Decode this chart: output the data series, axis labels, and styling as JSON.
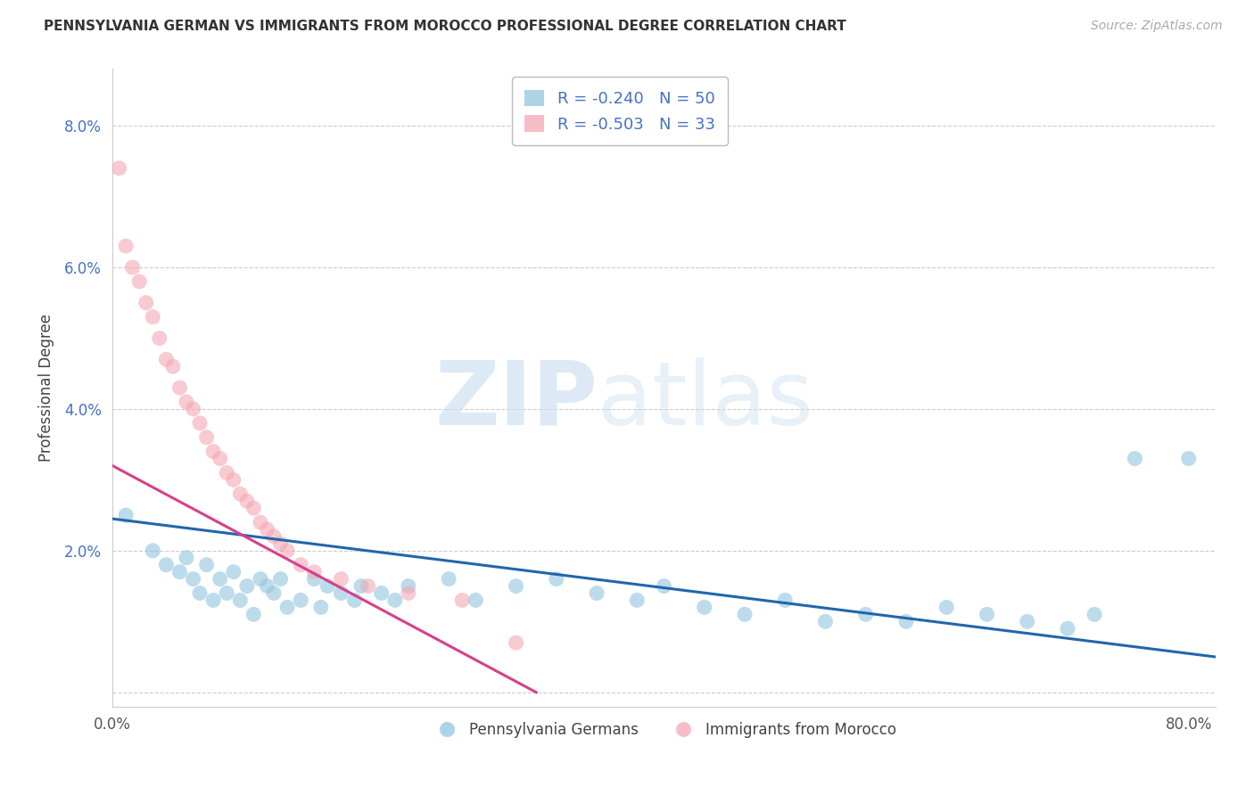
{
  "title": "PENNSYLVANIA GERMAN VS IMMIGRANTS FROM MOROCCO PROFESSIONAL DEGREE CORRELATION CHART",
  "source": "Source: ZipAtlas.com",
  "ylabel": "Professional Degree",
  "yticks": [
    0.0,
    0.02,
    0.04,
    0.06,
    0.08
  ],
  "ytick_labels": [
    "",
    "2.0%",
    "4.0%",
    "6.0%",
    "8.0%"
  ],
  "xlim": [
    0.0,
    0.82
  ],
  "ylim": [
    -0.002,
    0.088
  ],
  "bg_color": "#ffffff",
  "legend_r1": "-0.240",
  "legend_n1": "50",
  "legend_r2": "-0.503",
  "legend_n2": "33",
  "blue_color": "#92c5de",
  "pink_color": "#f4a7b5",
  "blue_line_color": "#2166ac",
  "pink_line_color": "#d6408a",
  "blue_x": [
    0.01,
    0.03,
    0.04,
    0.05,
    0.055,
    0.06,
    0.065,
    0.07,
    0.075,
    0.08,
    0.085,
    0.09,
    0.095,
    0.1,
    0.105,
    0.11,
    0.115,
    0.12,
    0.125,
    0.13,
    0.14,
    0.15,
    0.155,
    0.16,
    0.17,
    0.18,
    0.185,
    0.2,
    0.21,
    0.22,
    0.25,
    0.27,
    0.3,
    0.33,
    0.36,
    0.39,
    0.41,
    0.44,
    0.47,
    0.5,
    0.53,
    0.56,
    0.59,
    0.62,
    0.65,
    0.68,
    0.71,
    0.73,
    0.76,
    0.8
  ],
  "blue_y": [
    0.025,
    0.02,
    0.018,
    0.017,
    0.019,
    0.016,
    0.014,
    0.018,
    0.013,
    0.016,
    0.014,
    0.017,
    0.013,
    0.015,
    0.011,
    0.016,
    0.015,
    0.014,
    0.016,
    0.012,
    0.013,
    0.016,
    0.012,
    0.015,
    0.014,
    0.013,
    0.015,
    0.014,
    0.013,
    0.015,
    0.016,
    0.013,
    0.015,
    0.016,
    0.014,
    0.013,
    0.015,
    0.012,
    0.011,
    0.013,
    0.01,
    0.011,
    0.01,
    0.012,
    0.011,
    0.01,
    0.009,
    0.011,
    0.033,
    0.033
  ],
  "pink_x": [
    0.005,
    0.01,
    0.015,
    0.02,
    0.025,
    0.03,
    0.035,
    0.04,
    0.045,
    0.05,
    0.055,
    0.06,
    0.065,
    0.07,
    0.075,
    0.08,
    0.085,
    0.09,
    0.095,
    0.1,
    0.105,
    0.11,
    0.115,
    0.12,
    0.125,
    0.13,
    0.14,
    0.15,
    0.17,
    0.19,
    0.22,
    0.26,
    0.3
  ],
  "pink_y": [
    0.074,
    0.063,
    0.06,
    0.058,
    0.055,
    0.053,
    0.05,
    0.047,
    0.046,
    0.043,
    0.041,
    0.04,
    0.038,
    0.036,
    0.034,
    0.033,
    0.031,
    0.03,
    0.028,
    0.027,
    0.026,
    0.024,
    0.023,
    0.022,
    0.021,
    0.02,
    0.018,
    0.017,
    0.016,
    0.015,
    0.014,
    0.013,
    0.007
  ],
  "blue_trend_x": [
    0.0,
    0.82
  ],
  "blue_trend_y": [
    0.0245,
    0.005
  ],
  "pink_trend_x": [
    0.0,
    0.315
  ],
  "pink_trend_y": [
    0.032,
    0.0
  ]
}
